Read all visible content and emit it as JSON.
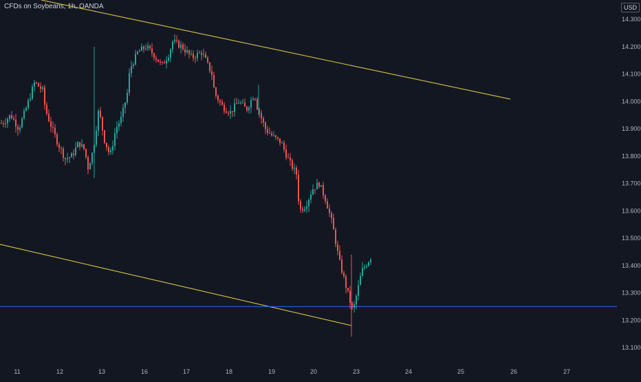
{
  "title": "CFDs on Soybeans, 1h, OANDA",
  "currency": "USD",
  "colors": {
    "background": "#131722",
    "up": "#26a69a",
    "down": "#ef5350",
    "trendline": "#c9b53e",
    "hline": "#2962ff",
    "axis_text": "#b2b5be"
  },
  "chart_data": {
    "type": "candlestick",
    "title": "CFDs on Soybeans, 1h, OANDA",
    "xlabel": "",
    "ylabel": "USD",
    "ylim": [
      13.05,
      14.35
    ],
    "x_ticks": [
      "11",
      "12",
      "13",
      "16",
      "17",
      "18",
      "19",
      "20",
      "23",
      "24",
      "25",
      "26",
      "27"
    ],
    "y_ticks": [
      13.1,
      13.2,
      13.3,
      13.4,
      13.5,
      13.6,
      13.7,
      13.8,
      13.9,
      14.0,
      14.1,
      14.2,
      14.3
    ],
    "y_tick_labels": [
      "13.100",
      "13.200",
      "13.300",
      "13.400",
      "13.500",
      "13.600",
      "13.700",
      "13.800",
      "13.900",
      "14.000",
      "14.100",
      "14.200",
      "14.300"
    ],
    "horizontal_line": 13.25,
    "trendlines": [
      {
        "from": {
          "date": "11",
          "price": 14.35
        },
        "to": {
          "date": "26",
          "price": 14.01
        }
      },
      {
        "from": {
          "date": "11",
          "price": 13.48
        },
        "to": {
          "date": "23",
          "price": 13.18
        }
      }
    ],
    "close_path": [
      [
        "11",
        13.92
      ],
      [
        "11",
        13.95
      ],
      [
        "11",
        13.9
      ],
      [
        "11",
        13.98
      ],
      [
        "11",
        14.07
      ],
      [
        "11",
        14.04
      ],
      [
        "12",
        13.97
      ],
      [
        "12",
        13.9
      ],
      [
        "12",
        13.84
      ],
      [
        "12",
        13.79
      ],
      [
        "12",
        13.8
      ],
      [
        "12",
        13.85
      ],
      [
        "12",
        13.82
      ],
      [
        "13",
        13.75
      ],
      [
        "13",
        13.82
      ],
      [
        "13",
        13.97
      ],
      [
        "13",
        13.86
      ],
      [
        "13",
        13.8
      ],
      [
        "13",
        13.9
      ],
      [
        "13",
        13.94
      ],
      [
        "13",
        14.03
      ],
      [
        "16",
        14.12
      ],
      [
        "16",
        14.18
      ],
      [
        "16",
        14.2
      ],
      [
        "16",
        14.17
      ],
      [
        "16",
        14.13
      ],
      [
        "16",
        14.18
      ],
      [
        "17",
        14.22
      ],
      [
        "17",
        14.2
      ],
      [
        "17",
        14.16
      ],
      [
        "17",
        14.18
      ],
      [
        "17",
        14.1
      ],
      [
        "18",
        14.03
      ],
      [
        "18",
        13.98
      ],
      [
        "18",
        13.96
      ],
      [
        "18",
        14.0
      ],
      [
        "18",
        13.97
      ],
      [
        "18",
        14.03
      ],
      [
        "19",
        13.98
      ],
      [
        "19",
        13.9
      ],
      [
        "19",
        13.87
      ],
      [
        "19",
        13.85
      ],
      [
        "19",
        13.78
      ],
      [
        "19",
        13.73
      ],
      [
        "20",
        13.6
      ],
      [
        "20",
        13.62
      ],
      [
        "20",
        13.68
      ],
      [
        "20",
        13.7
      ],
      [
        "20",
        13.64
      ],
      [
        "20",
        13.55
      ],
      [
        "20",
        13.42
      ],
      [
        "23",
        13.23
      ],
      [
        "23",
        13.38
      ],
      [
        "23",
        13.43
      ]
    ]
  }
}
